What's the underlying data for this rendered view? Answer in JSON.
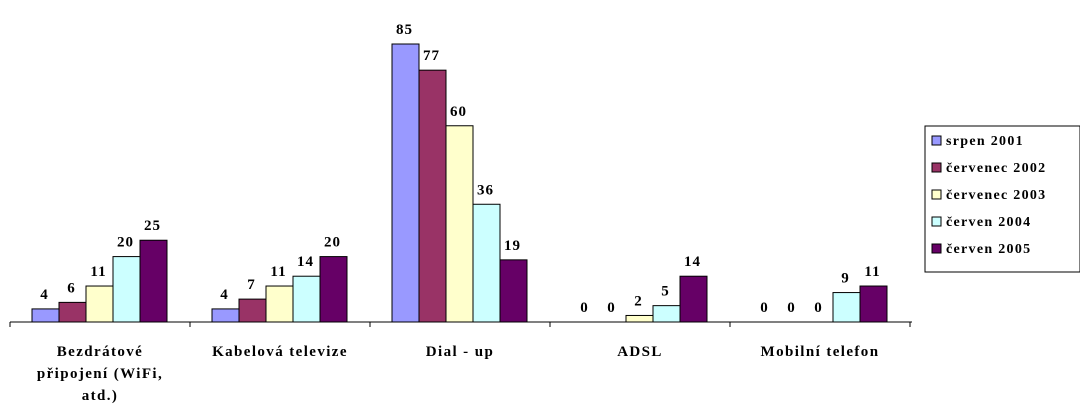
{
  "chart_data": {
    "type": "bar",
    "categories": [
      [
        "Bezdrátové",
        "připojení (WiFi,",
        "atd.)"
      ],
      [
        "Kabelová televize"
      ],
      [
        "Dial - up"
      ],
      [
        "ADSL"
      ],
      [
        "Mobilní telefon"
      ]
    ],
    "series": [
      {
        "name": "srpen 2001",
        "color": "#9999ff",
        "values": [
          4,
          4,
          85,
          0,
          0
        ]
      },
      {
        "name": "červenec 2002",
        "color": "#993366",
        "values": [
          6,
          7,
          77,
          0,
          0
        ]
      },
      {
        "name": "červenec 2003",
        "color": "#ffffcc",
        "values": [
          11,
          11,
          60,
          2,
          0
        ]
      },
      {
        "name": "červen 2004",
        "color": "#ccffff",
        "values": [
          20,
          14,
          36,
          5,
          9
        ]
      },
      {
        "name": "červen 2005",
        "color": "#660066",
        "values": [
          25,
          20,
          19,
          14,
          11
        ]
      }
    ],
    "ylim": [
      0,
      85
    ],
    "legend_position": "right",
    "grid": false
  }
}
